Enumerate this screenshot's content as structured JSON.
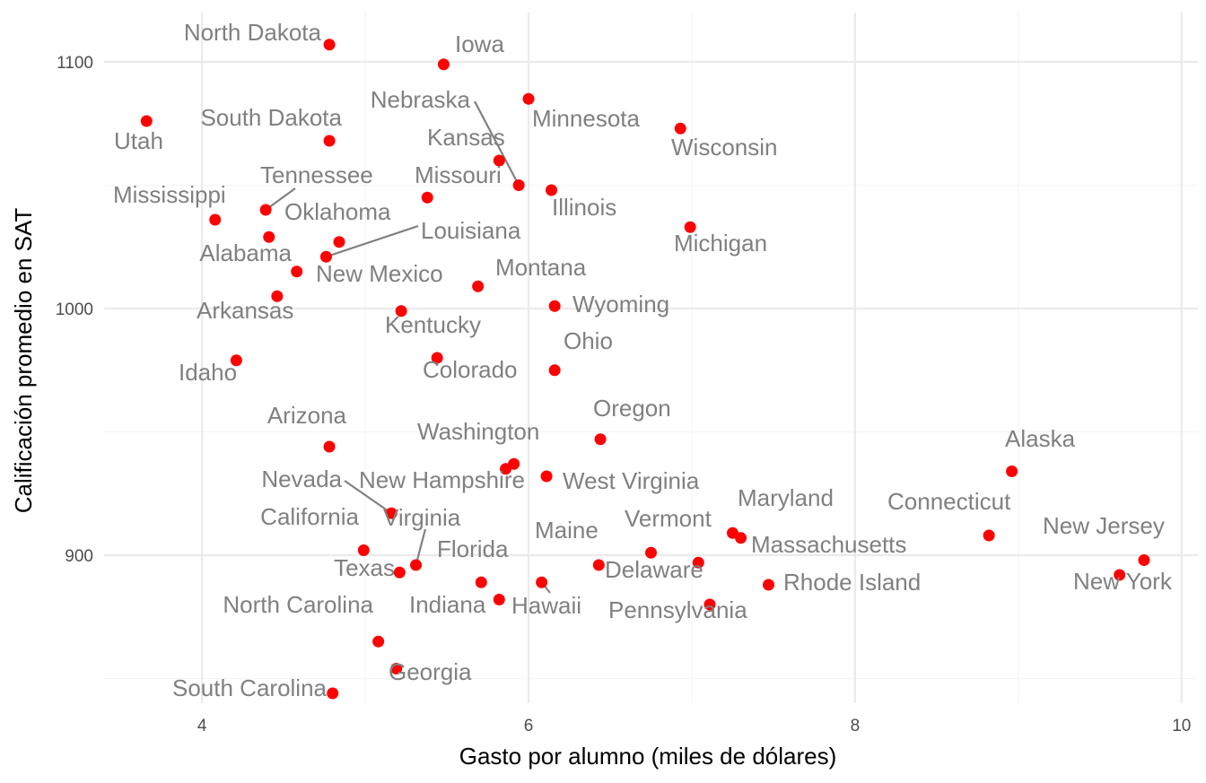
{
  "chart_data": {
    "type": "scatter",
    "xlabel": "Gasto por alumno (miles de dólares)",
    "ylabel": "Calificación promedio en SAT",
    "xlim": [
      3.4,
      10.1
    ],
    "ylim": [
      840,
      1120
    ],
    "x_ticks": [
      4,
      6,
      8,
      10
    ],
    "y_ticks": [
      900,
      1000,
      1100
    ],
    "x_tick_labels": [
      "4",
      "6",
      "8",
      "10"
    ],
    "y_tick_labels": [
      "900",
      "1000",
      "1100"
    ],
    "grid": true,
    "point_color": "#ff0000",
    "label_color": "#808080",
    "points": [
      {
        "label": "North Dakota",
        "x": 4.78,
        "y": 1107
      },
      {
        "label": "Iowa",
        "x": 5.48,
        "y": 1099
      },
      {
        "label": "Utah",
        "x": 3.66,
        "y": 1076
      },
      {
        "label": "South Dakota",
        "x": 4.78,
        "y": 1068
      },
      {
        "label": "Nebraska",
        "x": 5.94,
        "y": 1050
      },
      {
        "label": "Minnesota",
        "x": 6.0,
        "y": 1085
      },
      {
        "label": "Wisconsin",
        "x": 6.93,
        "y": 1073
      },
      {
        "label": "Kansas",
        "x": 5.82,
        "y": 1060
      },
      {
        "label": "Missouri",
        "x": 5.38,
        "y": 1045
      },
      {
        "label": "Illinois",
        "x": 6.14,
        "y": 1048
      },
      {
        "label": "Tennessee",
        "x": 4.39,
        "y": 1040
      },
      {
        "label": "Mississippi",
        "x": 4.08,
        "y": 1036
      },
      {
        "label": "Oklahoma",
        "x": 4.41,
        "y": 1029
      },
      {
        "label": "Louisiana",
        "x": 4.76,
        "y": 1021
      },
      {
        "label": "Alabama",
        "x": 4.58,
        "y": 1015
      },
      {
        "label": "New Mexico",
        "x": 4.84,
        "y": 1027
      },
      {
        "label": "Michigan",
        "x": 6.99,
        "y": 1033
      },
      {
        "label": "Montana",
        "x": 5.69,
        "y": 1009
      },
      {
        "label": "Arkansas",
        "x": 4.46,
        "y": 1005
      },
      {
        "label": "Kentucky",
        "x": 5.22,
        "y": 999
      },
      {
        "label": "Wyoming",
        "x": 6.16,
        "y": 1001
      },
      {
        "label": "Idaho",
        "x": 4.21,
        "y": 979
      },
      {
        "label": "Colorado",
        "x": 5.44,
        "y": 980
      },
      {
        "label": "Ohio",
        "x": 6.16,
        "y": 975
      },
      {
        "label": "Arizona",
        "x": 4.78,
        "y": 944
      },
      {
        "label": "Oregon",
        "x": 6.44,
        "y": 947
      },
      {
        "label": "Washington",
        "x": 5.91,
        "y": 937
      },
      {
        "label": "New Hampshire",
        "x": 5.86,
        "y": 935
      },
      {
        "label": "West Virginia",
        "x": 6.11,
        "y": 932
      },
      {
        "label": "Alaska",
        "x": 8.96,
        "y": 934
      },
      {
        "label": "Nevada",
        "x": 5.16,
        "y": 917
      },
      {
        "label": "California",
        "x": 4.99,
        "y": 902
      },
      {
        "label": "Virginia",
        "x": 5.31,
        "y": 896
      },
      {
        "label": "Maryland",
        "x": 7.25,
        "y": 909
      },
      {
        "label": "Connecticut",
        "x": 8.82,
        "y": 908
      },
      {
        "label": "Vermont",
        "x": 7.3,
        "y": 907
      },
      {
        "label": "New Jersey",
        "x": 9.77,
        "y": 898
      },
      {
        "label": "Maine",
        "x": 6.75,
        "y": 901
      },
      {
        "label": "Massachusetts",
        "x": 7.04,
        "y": 897
      },
      {
        "label": "Florida",
        "x": 6.43,
        "y": 896
      },
      {
        "label": "Texas",
        "x": 5.21,
        "y": 893
      },
      {
        "label": "New York",
        "x": 9.62,
        "y": 892
      },
      {
        "label": "Hawaii",
        "x": 6.08,
        "y": 889
      },
      {
        "label": "Delaware",
        "x": 5.71,
        "y": 889
      },
      {
        "label": "Rhode Island",
        "x": 7.47,
        "y": 888
      },
      {
        "label": "Indiana",
        "x": 5.82,
        "y": 882
      },
      {
        "label": "Pennsylvania",
        "x": 7.11,
        "y": 880
      },
      {
        "label": "North Carolina",
        "x": 5.08,
        "y": 865
      },
      {
        "label": "Georgia",
        "x": 5.19,
        "y": 854
      },
      {
        "label": "South Carolina",
        "x": 4.8,
        "y": 844
      }
    ]
  }
}
